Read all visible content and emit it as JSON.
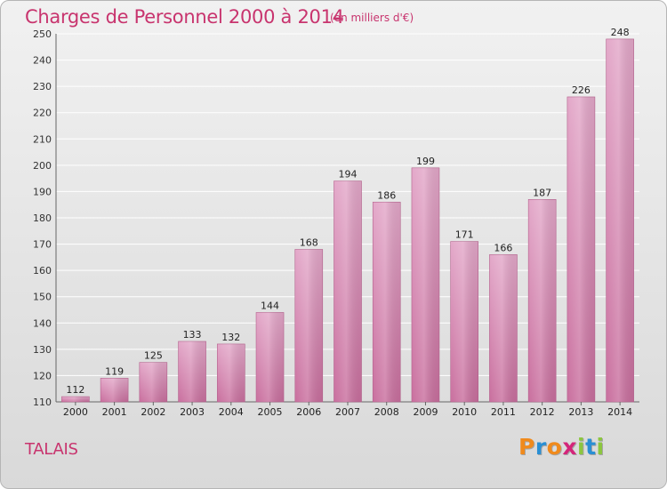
{
  "chart_data": {
    "type": "bar",
    "title": "Charges de Personnel 2000 à 2014",
    "subtitle": "(en milliers d'€)",
    "categories": [
      "2000",
      "2001",
      "2002",
      "2003",
      "2004",
      "2005",
      "2006",
      "2007",
      "2008",
      "2009",
      "2010",
      "2011",
      "2012",
      "2013",
      "2014"
    ],
    "values": [
      112,
      119,
      125,
      133,
      132,
      144,
      168,
      194,
      186,
      199,
      171,
      166,
      187,
      226,
      248
    ],
    "ylim": [
      110,
      250
    ],
    "yticks": [
      110,
      120,
      130,
      140,
      150,
      160,
      170,
      180,
      190,
      200,
      210,
      220,
      230,
      240,
      250
    ],
    "grid": true,
    "colors": {
      "bar": "#c96f9e",
      "bar_light": "#e3a8c9",
      "title": "#c8346e",
      "grid": "#ffffff"
    }
  },
  "place_name": "TALAIS",
  "logo": {
    "letters": [
      {
        "ch": "P",
        "color": "#f08a1c"
      },
      {
        "ch": "r",
        "color": "#2a8fd4"
      },
      {
        "ch": "o",
        "color": "#f08a1c"
      },
      {
        "ch": "x",
        "color": "#d4257a"
      },
      {
        "ch": "i",
        "color": "#8cc63f"
      },
      {
        "ch": "t",
        "color": "#2a8fd4"
      },
      {
        "ch": "i",
        "color": "#8cc63f"
      }
    ]
  }
}
